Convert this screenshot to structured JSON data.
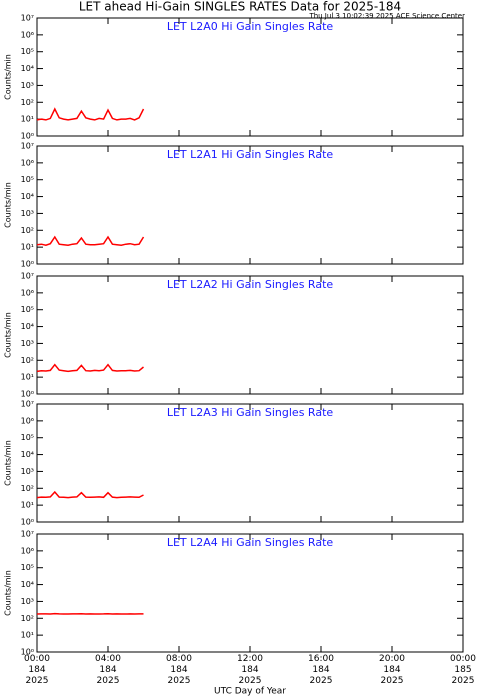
{
  "page": {
    "title": "LET ahead Hi-Gain SINGLES RATES Data for 2025-184",
    "subtitle": "Thu Jul  3 10:02:39 2025 ACE Science Center"
  },
  "chart_data": [
    {
      "type": "line",
      "title": "LET L2A0 Hi Gain Singles Rate",
      "y_label": "Counts/min",
      "log": true,
      "color": "#ff0000",
      "x": [
        0,
        0.25,
        0.5,
        0.75,
        1,
        1.25,
        1.5,
        1.75,
        2,
        2.25,
        2.5,
        2.75,
        3,
        3.25,
        3.5,
        3.75,
        4,
        4.25,
        4.5,
        4.75,
        5,
        5.25,
        5.5,
        5.75,
        6
      ],
      "values": [
        9,
        10,
        9,
        11,
        40,
        12,
        10,
        9,
        10,
        11,
        30,
        12,
        10,
        9,
        11,
        10,
        35,
        11,
        9,
        10,
        10,
        11,
        9,
        12,
        40
      ],
      "xlim": [
        0,
        24
      ],
      "ylim": [
        1,
        10000000
      ],
      "yticks": [
        {
          "value": 1,
          "label": "10⁰"
        },
        {
          "value": 10,
          "label": "10¹"
        },
        {
          "value": 100,
          "label": "10²"
        },
        {
          "value": 1000,
          "label": "10³"
        },
        {
          "value": 10000,
          "label": "10⁴"
        },
        {
          "value": 100000,
          "label": "10⁵"
        },
        {
          "value": 1000000,
          "label": "10⁶"
        },
        {
          "value": 10000000,
          "label": "10⁷"
        }
      ]
    },
    {
      "type": "line",
      "title": "LET L2A1 Hi Gain Singles Rate",
      "y_label": "Counts/min",
      "log": true,
      "color": "#ff0000",
      "x": [
        0,
        0.25,
        0.5,
        0.75,
        1,
        1.25,
        1.5,
        1.75,
        2,
        2.25,
        2.5,
        2.75,
        3,
        3.25,
        3.5,
        3.75,
        4,
        4.25,
        4.5,
        4.75,
        5,
        5.25,
        5.5,
        5.75,
        6
      ],
      "values": [
        14,
        15,
        13,
        16,
        40,
        15,
        14,
        13,
        15,
        16,
        35,
        15,
        14,
        14,
        15,
        16,
        40,
        15,
        14,
        13,
        15,
        16,
        14,
        15,
        40
      ],
      "xlim": [
        0,
        24
      ],
      "ylim": [
        1,
        10000000
      ],
      "yticks": [
        {
          "value": 1,
          "label": "10⁰"
        },
        {
          "value": 10,
          "label": "10¹"
        },
        {
          "value": 100,
          "label": "10²"
        },
        {
          "value": 1000,
          "label": "10³"
        },
        {
          "value": 10000,
          "label": "10⁴"
        },
        {
          "value": 100000,
          "label": "10⁵"
        },
        {
          "value": 1000000,
          "label": "10⁶"
        },
        {
          "value": 10000000,
          "label": "10⁷"
        }
      ]
    },
    {
      "type": "line",
      "title": "LET L2A2 Hi Gain Singles Rate",
      "y_label": "Counts/min",
      "log": true,
      "color": "#ff0000",
      "x": [
        0,
        0.25,
        0.5,
        0.75,
        1,
        1.25,
        1.5,
        1.75,
        2,
        2.25,
        2.5,
        2.75,
        3,
        3.25,
        3.5,
        3.75,
        4,
        4.25,
        4.5,
        4.75,
        5,
        5.25,
        5.5,
        5.75,
        6
      ],
      "values": [
        22,
        24,
        23,
        25,
        55,
        26,
        24,
        22,
        24,
        25,
        50,
        24,
        23,
        25,
        24,
        26,
        55,
        25,
        23,
        24,
        24,
        25,
        23,
        24,
        40
      ],
      "xlim": [
        0,
        24
      ],
      "ylim": [
        1,
        10000000
      ],
      "yticks": [
        {
          "value": 1,
          "label": "10⁰"
        },
        {
          "value": 10,
          "label": "10¹"
        },
        {
          "value": 100,
          "label": "10²"
        },
        {
          "value": 1000,
          "label": "10³"
        },
        {
          "value": 10000,
          "label": "10⁴"
        },
        {
          "value": 100000,
          "label": "10⁵"
        },
        {
          "value": 1000000,
          "label": "10⁶"
        },
        {
          "value": 10000000,
          "label": "10⁷"
        }
      ]
    },
    {
      "type": "line",
      "title": "LET L2A3 Hi Gain Singles Rate",
      "y_label": "Counts/min",
      "log": true,
      "color": "#ff0000",
      "x": [
        0,
        0.25,
        0.5,
        0.75,
        1,
        1.25,
        1.5,
        1.75,
        2,
        2.25,
        2.5,
        2.75,
        3,
        3.25,
        3.5,
        3.75,
        4,
        4.25,
        4.5,
        4.75,
        5,
        5.25,
        5.5,
        5.75,
        6
      ],
      "values": [
        28,
        30,
        29,
        31,
        60,
        30,
        29,
        28,
        30,
        31,
        55,
        30,
        29,
        30,
        31,
        29,
        55,
        30,
        28,
        29,
        30,
        31,
        30,
        29,
        40
      ],
      "xlim": [
        0,
        24
      ],
      "ylim": [
        1,
        10000000
      ],
      "yticks": [
        {
          "value": 1,
          "label": "10⁰"
        },
        {
          "value": 10,
          "label": "10¹"
        },
        {
          "value": 100,
          "label": "10²"
        },
        {
          "value": 1000,
          "label": "10³"
        },
        {
          "value": 10000,
          "label": "10⁴"
        },
        {
          "value": 100000,
          "label": "10⁵"
        },
        {
          "value": 1000000,
          "label": "10⁶"
        },
        {
          "value": 10000000,
          "label": "10⁷"
        }
      ]
    },
    {
      "type": "line",
      "title": "LET L2A4 Hi Gain Singles Rate",
      "y_label": "Counts/min",
      "log": true,
      "color": "#ff0000",
      "x": [
        0,
        0.25,
        0.5,
        0.75,
        1,
        1.25,
        1.5,
        1.75,
        2,
        2.25,
        2.5,
        2.75,
        3,
        3.25,
        3.5,
        3.75,
        4,
        4.25,
        4.5,
        4.75,
        5,
        5.25,
        5.5,
        5.75,
        6
      ],
      "values": [
        180,
        182,
        181,
        180,
        190,
        181,
        180,
        179,
        181,
        182,
        185,
        180,
        181,
        180,
        179,
        181,
        188,
        180,
        181,
        180,
        179,
        181,
        180,
        181,
        182
      ],
      "xlim": [
        0,
        24
      ],
      "ylim": [
        1,
        10000000
      ],
      "yticks": [
        {
          "value": 1,
          "label": "10⁰"
        },
        {
          "value": 10,
          "label": "10¹"
        },
        {
          "value": 100,
          "label": "10²"
        },
        {
          "value": 1000,
          "label": "10³"
        },
        {
          "value": 10000,
          "label": "10⁴"
        },
        {
          "value": 100000,
          "label": "10⁵"
        },
        {
          "value": 1000000,
          "label": "10⁶"
        },
        {
          "value": 10000000,
          "label": "10⁷"
        }
      ],
      "x_label": "UTC Day of Year",
      "xticks": [
        {
          "value": 0,
          "label": "00:00\n184\n2025"
        },
        {
          "value": 4,
          "label": "04:00\n184\n2025"
        },
        {
          "value": 8,
          "label": "08:00\n184\n2025"
        },
        {
          "value": 12,
          "label": "12:00\n184\n2025"
        },
        {
          "value": 16,
          "label": "16:00\n184\n2025"
        },
        {
          "value": 20,
          "label": "20:00\n184\n2025"
        },
        {
          "value": 24,
          "label": "00:00\n185\n2025"
        }
      ]
    }
  ]
}
